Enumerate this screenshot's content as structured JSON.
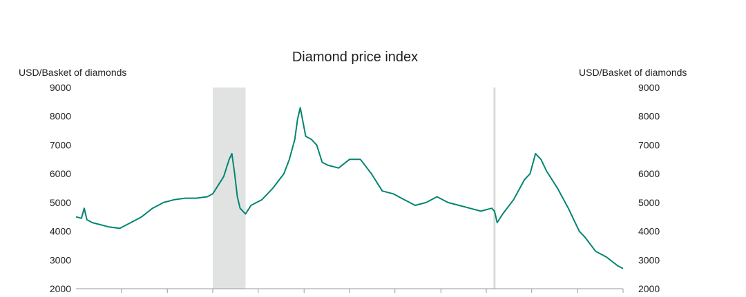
{
  "chart_data": {
    "type": "line",
    "title": "Diamond price index",
    "ylabel_left": "USD/Basket of diamonds",
    "ylabel_right": "USD/Basket of diamonds",
    "ylim": [
      2000,
      9000
    ],
    "yticks": [
      "9000",
      "8000",
      "7000",
      "6000",
      "5000",
      "4000",
      "3000",
      "2000"
    ],
    "grid": false,
    "legend": "none",
    "x_domain": [
      0,
      100
    ],
    "x_tick_positions": [
      8.3,
      16.7,
      25,
      33.3,
      41.7,
      50,
      58.3,
      66.7,
      75,
      83.3,
      91.7,
      100
    ],
    "shaded_periods": [
      {
        "x_start": 25,
        "x_end": 31
      }
    ],
    "marker_lines": [
      {
        "x": 76.5
      }
    ],
    "series": [
      {
        "color": "#008570",
        "x": [
          0,
          1,
          1.5,
          2,
          3,
          4,
          5,
          6,
          8,
          10,
          12,
          14,
          16,
          18,
          20,
          22,
          24,
          25,
          26,
          27,
          28,
          28.5,
          29,
          29.5,
          30,
          31,
          32,
          34,
          36,
          38,
          39,
          40,
          40.5,
          41,
          42,
          43,
          44,
          45,
          46,
          48,
          50,
          52,
          54,
          56,
          58,
          60,
          62,
          64,
          66,
          68,
          70,
          72,
          74,
          76,
          76.5,
          77,
          78,
          80,
          82,
          83,
          84,
          85,
          86,
          88,
          90,
          92,
          93,
          95,
          97,
          99,
          100
        ],
        "y": [
          4500,
          4450,
          4800,
          4400,
          4300,
          4250,
          4200,
          4150,
          4100,
          4300,
          4500,
          4800,
          5000,
          5100,
          5150,
          5150,
          5200,
          5300,
          5600,
          5900,
          6500,
          6700,
          6000,
          5200,
          4800,
          4600,
          4900,
          5100,
          5500,
          6000,
          6500,
          7200,
          7900,
          8300,
          7300,
          7200,
          7000,
          6400,
          6300,
          6200,
          6500,
          6500,
          6000,
          5400,
          5300,
          5100,
          4900,
          5000,
          5200,
          5000,
          4900,
          4800,
          4700,
          4800,
          4700,
          4300,
          4600,
          5100,
          5800,
          6000,
          6700,
          6500,
          6100,
          5500,
          4800,
          4000,
          3800,
          3300,
          3100,
          2800,
          2700
        ]
      }
    ]
  }
}
